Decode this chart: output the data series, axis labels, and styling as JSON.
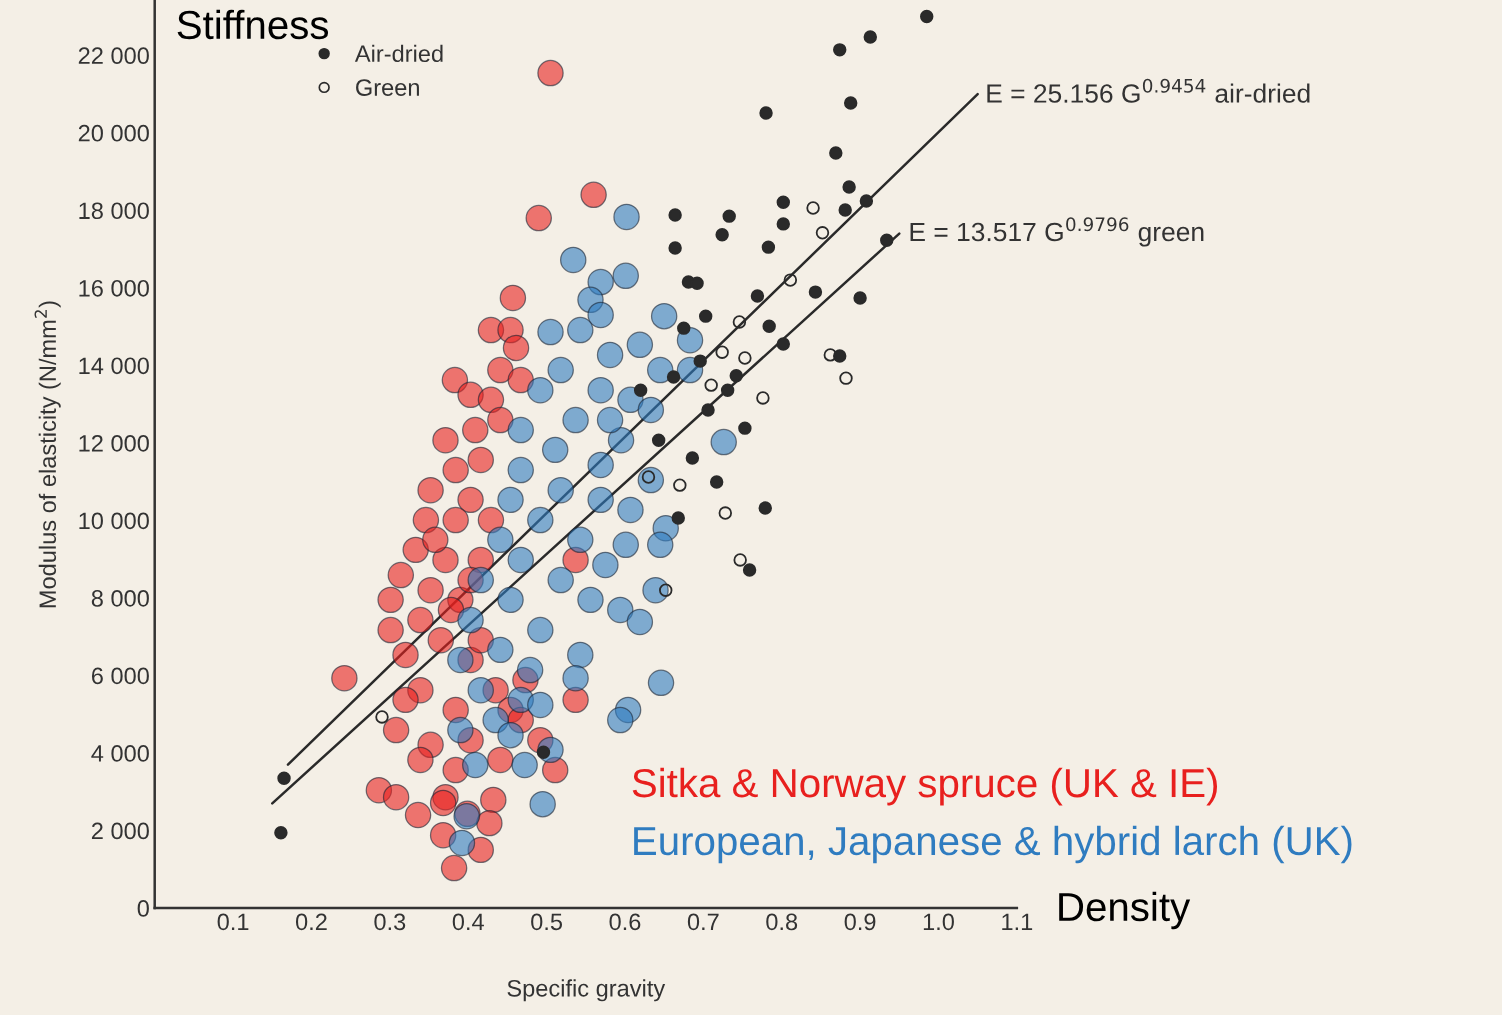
{
  "chart_data": {
    "type": "scatter",
    "xlabel": "Specific gravity",
    "ylabel": "Modulus of elasticity (N/mm$^{2}$)",
    "xlim": [
      0,
      1.1
    ],
    "ylim": [
      0,
      23400
    ],
    "xticks": [
      0.1,
      0.2,
      0.3,
      0.4,
      0.5,
      0.6,
      0.7,
      0.8,
      0.9,
      {
        "value": 1.0,
        "label": "1.0"
      },
      1.1
    ],
    "yticks": [
      0,
      {
        "value": 2000,
        "label": "2 000"
      },
      {
        "value": 4000,
        "label": "4 000"
      },
      {
        "value": 6000,
        "label": "6 000"
      },
      {
        "value": 8000,
        "label": "8 000"
      },
      {
        "value": 10000,
        "label": "10 000"
      },
      {
        "value": 12000,
        "label": "12 000"
      },
      {
        "value": 14000,
        "label": "14 000"
      },
      {
        "value": 16000,
        "label": "16 000"
      },
      {
        "value": 18000,
        "label": "18 000"
      },
      {
        "value": 20000,
        "label": "20 000"
      },
      {
        "value": 22000,
        "label": "22 000"
      }
    ],
    "grid": false,
    "legend": "top left",
    "marker": "circle",
    "annotations": [
      "Stiffness",
      "Density",
      {
        "text": "E = 25.156 G$^{0.9454}$ air-dried",
        "x": 1.049,
        "y": 20950
      },
      {
        "text": "E = 13.517 G$^{0.9796}$ green",
        "x": 0.951,
        "y": 17440
      }
    ],
    "series": [
      {
        "name": "Sitka & Norway spruce (UK & IE)",
        "color": "#e8201e",
        "x": [
          0.505,
          0.56,
          0.49,
          0.457,
          0.429,
          0.454,
          0.461,
          0.383,
          0.403,
          0.441,
          0.429,
          0.371,
          0.409,
          0.441,
          0.384,
          0.416,
          0.352,
          0.403,
          0.346,
          0.384,
          0.333,
          0.371,
          0.314,
          0.352,
          0.301,
          0.339,
          0.301,
          0.365,
          0.32,
          0.403,
          0.242,
          0.339,
          0.435,
          0.32,
          0.384,
          0.454,
          0.308,
          0.352,
          0.403,
          0.467,
          0.537,
          0.339,
          0.384,
          0.441,
          0.286,
          0.308,
          0.371,
          0.336,
          0.368,
          0.432,
          0.399,
          0.427,
          0.368,
          0.416,
          0.382,
          0.511,
          0.467,
          0.416,
          0.39,
          0.416,
          0.358,
          0.429,
          0.473,
          0.537,
          0.492,
          0.403,
          0.378
        ],
        "values": [
          21540,
          18400,
          17800,
          15740,
          14910,
          14910,
          14450,
          13620,
          13240,
          13880,
          13110,
          12070,
          12330,
          12590,
          11300,
          11560,
          10780,
          10530,
          10010,
          10010,
          9240,
          8980,
          8590,
          8200,
          7950,
          7430,
          7170,
          6910,
          6530,
          6400,
          5930,
          5620,
          5620,
          5370,
          5110,
          5110,
          4590,
          4210,
          4330,
          4850,
          5370,
          3820,
          3560,
          3820,
          3040,
          2860,
          2860,
          2400,
          2710,
          2790,
          2430,
          2190,
          1880,
          1500,
          1030,
          3560,
          13620,
          8980,
          7950,
          6910,
          9500,
          10010,
          5880,
          8980,
          4330,
          8460,
          7690
        ]
      },
      {
        "name": "European, Japanese & hybrid larch (UK)",
        "color": "#2f7cc0",
        "x": [
          0.602,
          0.534,
          0.569,
          0.601,
          0.556,
          0.569,
          0.65,
          0.505,
          0.543,
          0.581,
          0.683,
          0.645,
          0.518,
          0.492,
          0.569,
          0.607,
          0.633,
          0.537,
          0.467,
          0.595,
          0.726,
          0.511,
          0.569,
          0.467,
          0.633,
          0.518,
          0.454,
          0.569,
          0.607,
          0.652,
          0.492,
          0.441,
          0.543,
          0.601,
          0.645,
          0.467,
          0.575,
          0.416,
          0.518,
          0.639,
          0.454,
          0.556,
          0.594,
          0.403,
          0.492,
          0.619,
          0.441,
          0.543,
          0.39,
          0.479,
          0.537,
          0.646,
          0.416,
          0.467,
          0.604,
          0.594,
          0.39,
          0.435,
          0.492,
          0.454,
          0.505,
          0.409,
          0.472,
          0.495,
          0.398,
          0.392,
          0.683,
          0.619,
          0.581
        ],
        "values": [
          17830,
          16720,
          16150,
          16310,
          15690,
          15300,
          15270,
          14860,
          14910,
          14270,
          14650,
          13880,
          13880,
          13360,
          13360,
          13110,
          12850,
          12590,
          12330,
          12070,
          12020,
          11820,
          11430,
          11300,
          11040,
          10780,
          10530,
          10530,
          10270,
          9800,
          10010,
          9500,
          9500,
          9370,
          9370,
          8980,
          8850,
          8460,
          8460,
          8200,
          7950,
          7950,
          7690,
          7430,
          7170,
          7380,
          6660,
          6530,
          6400,
          6140,
          5930,
          5810,
          5620,
          5370,
          5110,
          4850,
          4590,
          4850,
          5240,
          4460,
          4080,
          3690,
          3690,
          2680,
          2370,
          1680,
          13880,
          14530,
          12590
        ]
      },
      {
        "name": "Air-dried",
        "color": "#2a2a2a",
        "x": [
          0.985,
          0.913,
          0.874,
          0.888,
          0.78,
          0.869,
          0.886,
          0.802,
          0.908,
          0.881,
          0.664,
          0.733,
          0.802,
          0.724,
          0.783,
          0.934,
          0.664,
          0.681,
          0.692,
          0.769,
          0.843,
          0.703,
          0.784,
          0.675,
          0.9,
          0.802,
          0.874,
          0.662,
          0.731,
          0.753,
          0.706,
          0.62,
          0.717,
          0.779,
          0.759,
          0.686,
          0.668,
          0.165,
          0.161,
          0.496,
          0.696,
          0.742,
          0.643
        ],
        "values": [
          23000,
          22470,
          22140,
          20770,
          20510,
          19480,
          18600,
          18210,
          18240,
          18010,
          17880,
          17850,
          17650,
          17370,
          17050,
          17230,
          17030,
          16150,
          16120,
          15790,
          15890,
          15270,
          15010,
          14960,
          15740,
          14550,
          14240,
          13700,
          13360,
          12380,
          12850,
          13360,
          10990,
          10320,
          8720,
          11610,
          10060,
          3350,
          1940,
          4020,
          14110,
          13730,
          12070
        ]
      },
      {
        "name": "Green",
        "color": "#2a2a2a",
        "x": [
          0.84,
          0.852,
          0.811,
          0.746,
          0.724,
          0.753,
          0.71,
          0.776,
          0.862,
          0.882,
          0.728,
          0.67,
          0.747,
          0.63,
          0.29,
          0.652
        ],
        "values": [
          18060,
          17420,
          16200,
          15120,
          14340,
          14190,
          13490,
          13160,
          14270,
          13670,
          10190,
          10910,
          8980,
          11120,
          4930,
          8200
        ]
      },
      {
        "type": "line",
        "marker": "none",
        "color": "#2a2a2a",
        "x": [
          0.17,
          1.05
        ],
        "values": [
          3700,
          21000
        ]
      },
      {
        "type": "line",
        "marker": "none",
        "color": "#2a2a2a",
        "x": [
          0.15,
          0.95
        ],
        "values": [
          2700,
          17400
        ]
      }
    ]
  }
}
